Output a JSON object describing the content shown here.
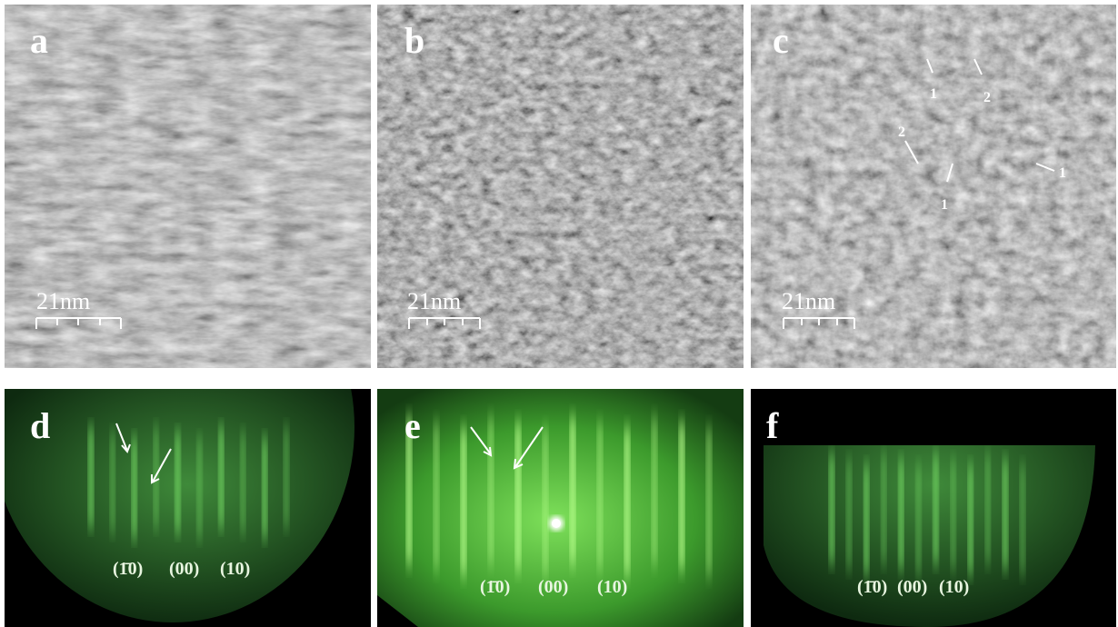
{
  "panels": [
    {
      "label": "a",
      "scale_bar": "21nm"
    },
    {
      "label": "b",
      "scale_bar": "21nm"
    },
    {
      "label": "c",
      "scale_bar": "21nm",
      "markers": [
        "1",
        "2",
        "2",
        "1",
        "1"
      ]
    },
    {
      "label": "d",
      "spots": [
        "(1̄0)",
        "(00)",
        "(10)"
      ]
    },
    {
      "label": "e",
      "spots": [
        "(1̄0)",
        "(00)",
        "(10)"
      ]
    },
    {
      "label": "f",
      "spots": [
        "(1̄0)",
        "(00)",
        "(10)"
      ]
    }
  ]
}
